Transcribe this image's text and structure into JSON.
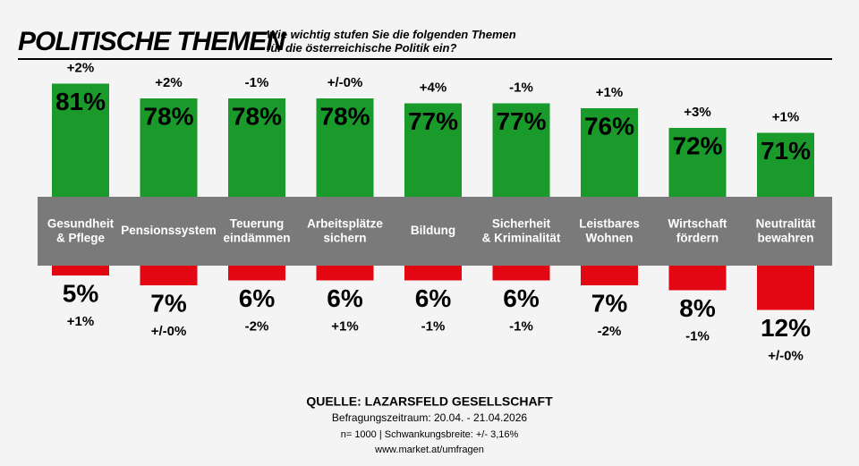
{
  "chart_data": {
    "type": "diverging-bar",
    "title": "POLITISCHE THEMEN",
    "subtitle": "Wie wichtig stufen Sie die folgenden Themen\nfür die österreichische Politik ein?",
    "categories": [
      "Gesundheit\n& Pflege",
      "Pensionssystem",
      "Teuerung\neindämmen",
      "Arbeitsplätze\nsichern",
      "Bildung",
      "Sicherheit\n& Kriminalität",
      "Leistbares\nWohnen",
      "Wirtschaft\nfördern",
      "Neutralität\nbewahren"
    ],
    "series": [
      {
        "color": "#1a9a2a",
        "values": [
          81,
          78,
          78,
          78,
          77,
          77,
          76,
          72,
          71
        ],
        "value_labels": [
          "81%",
          "78%",
          "78%",
          "78%",
          "77%",
          "77%",
          "76%",
          "72%",
          "71%"
        ],
        "changes": [
          "+2%",
          "+2%",
          "-1%",
          "+/-0%",
          "+4%",
          "-1%",
          "+1%",
          "+3%",
          "+1%"
        ]
      },
      {
        "color": "#e30613",
        "axis": "y2",
        "values": [
          5,
          7,
          6,
          6,
          6,
          6,
          7,
          8,
          12
        ],
        "value_labels": [
          "5%",
          "7%",
          "6%",
          "6%",
          "6%",
          "6%",
          "7%",
          "8%",
          "12%"
        ],
        "changes": [
          "+1%",
          "+/-0%",
          "-2%",
          "+1%",
          "-1%",
          "-1%",
          "-2%",
          "-1%",
          "+/-0%"
        ]
      }
    ],
    "ylim": [
      58,
      82
    ],
    "y2lim": [
      3,
      13
    ],
    "source": "QUELLE: LAZARSFELD GESELLSCHAFT",
    "notes": [
      "Befragungszeitraum: 20.04. - 21.04.2026",
      "n= 1000 | Schwankungsbreite: +/- 3,16%",
      "www.market.at/umfragen"
    ]
  }
}
